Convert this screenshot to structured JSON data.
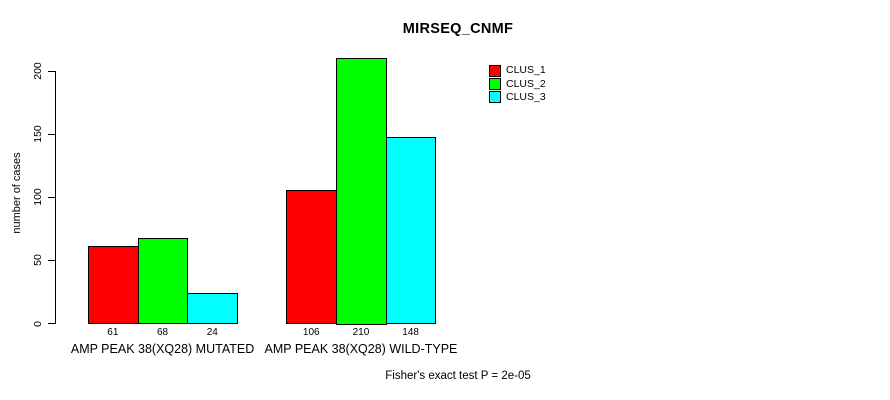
{
  "chart_data": {
    "type": "bar",
    "title": "MIRSEQ_CNMF",
    "xlabel": "",
    "ylabel": "number of cases",
    "ylim": [
      0,
      210
    ],
    "yticks": [
      0,
      50,
      100,
      150,
      200
    ],
    "grid": false,
    "legend_position": "top-right",
    "categories": [
      "AMP PEAK 38(XQ28) MUTATED",
      "AMP PEAK 38(XQ28) WILD-TYPE"
    ],
    "series": [
      {
        "name": "CLUS_1",
        "color": "#ff0000",
        "values": [
          61,
          106
        ]
      },
      {
        "name": "CLUS_2",
        "color": "#00ff00",
        "values": [
          68,
          210
        ]
      },
      {
        "name": "CLUS_3",
        "color": "#00ffff",
        "values": [
          24,
          148
        ]
      }
    ],
    "bar_value_labels_shown": true,
    "annotation": "Fisher's exact test P = 2e-05",
    "axis_color": "#000000",
    "text_color": "#000000",
    "bar_border_color": "#000000",
    "background_color": "#ffffff"
  }
}
